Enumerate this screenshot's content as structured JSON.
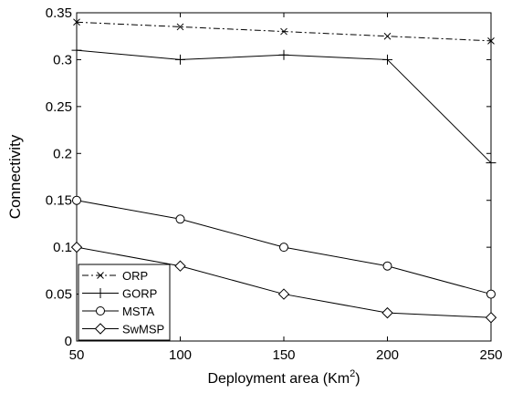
{
  "chart_data": {
    "type": "line",
    "title": "",
    "xlabel": "Deployment area (Km",
    "xlabel_sup": "2",
    "xlabel_close": ")",
    "ylabel": "Connectivity",
    "xlim": [
      50,
      250
    ],
    "ylim": [
      0,
      0.35
    ],
    "xticks": [
      50,
      100,
      150,
      200,
      250
    ],
    "yticks": [
      0,
      0.05,
      0.1,
      0.15,
      0.2,
      0.25,
      0.3,
      0.35
    ],
    "ytick_labels": [
      "0",
      "0.05",
      "0.1",
      "0.15",
      "0.2",
      "0.25",
      "0.3",
      "0.35"
    ],
    "grid": false,
    "legend_position": "bottom-left",
    "x": [
      50,
      100,
      150,
      200,
      250
    ],
    "series": [
      {
        "name": "ORP",
        "values": [
          0.34,
          0.335,
          0.33,
          0.325,
          0.32
        ],
        "marker": "x",
        "dash": "dashdot",
        "color": "#000000"
      },
      {
        "name": "GORP",
        "values": [
          0.31,
          0.3,
          0.305,
          0.3,
          0.19
        ],
        "marker": "plus",
        "dash": "solid",
        "color": "#000000"
      },
      {
        "name": "MSTA",
        "values": [
          0.15,
          0.13,
          0.1,
          0.08,
          0.05
        ],
        "marker": "circle",
        "dash": "solid",
        "color": "#000000"
      },
      {
        "name": "SwMSP",
        "values": [
          0.1,
          0.08,
          0.05,
          0.03,
          0.025
        ],
        "marker": "diamond",
        "dash": "solid",
        "color": "#000000"
      }
    ]
  }
}
